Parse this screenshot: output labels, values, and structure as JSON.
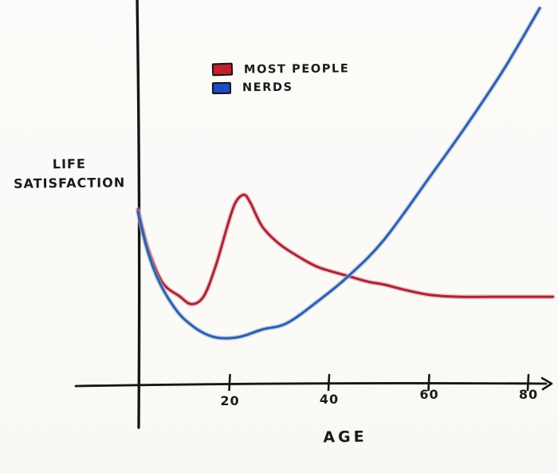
{
  "chart_data": {
    "type": "line",
    "title": "",
    "xlabel": "AGE",
    "ylabel": "LIFE SATISFACTION",
    "xlim": [
      0,
      85
    ],
    "ylim": [
      0,
      11
    ],
    "x_ticks": [
      "20",
      "40",
      "60",
      "80"
    ],
    "x_tick_values": [
      20,
      40,
      60,
      80
    ],
    "y_axis_ticks": "none (unlabeled satisfaction scale)",
    "grid": false,
    "legend_position": "top-center",
    "style": "hand-drawn meme sketch on white paper",
    "axis_color": "#161616",
    "legend": [
      {
        "label": "MOST PEOPLE",
        "color": "#c2202c"
      },
      {
        "label": "NERDS",
        "color": "#1d4dc0"
      }
    ],
    "series": [
      {
        "name": "MOST PEOPLE",
        "color": "#ab2436",
        "halo": "#e295a0",
        "shape": "starts high, dips to a low around age 11, sharp peak near age 22 (midlife spike), then slowly decays and flattens low for life",
        "x": [
          0,
          2,
          5,
          8.5,
          11,
          13.5,
          16,
          18.5,
          20,
          21.7,
          23,
          25.5,
          29,
          33,
          37,
          43,
          47,
          50.5,
          55,
          60,
          66,
          76,
          85
        ],
        "y": [
          5.0,
          3.9,
          2.9,
          2.5,
          2.27,
          2.5,
          3.4,
          4.6,
          5.2,
          5.42,
          5.2,
          4.5,
          4.0,
          3.63,
          3.33,
          3.08,
          2.92,
          2.83,
          2.67,
          2.53,
          2.48,
          2.48,
          2.48
        ]
      },
      {
        "name": "NERDS",
        "color": "#2e5fae",
        "halo": "#9ab8de",
        "shape": "starts high, sinks to a deep low around age 17, then rises ever more steeply, overtaking most people around age 43 and soaring off the chart by age 82",
        "x": [
          0,
          2,
          4.5,
          8,
          11,
          14,
          17,
          21,
          25.5,
          30.5,
          37,
          43.3,
          50.5,
          60,
          67,
          75,
          82.3
        ],
        "y": [
          4.94,
          3.79,
          2.87,
          2.07,
          1.66,
          1.4,
          1.29,
          1.33,
          1.54,
          1.72,
          2.37,
          3.1,
          4.14,
          5.98,
          7.36,
          9.05,
          10.8
        ]
      }
    ],
    "crossover_annotation": "curves cross near age 43"
  }
}
